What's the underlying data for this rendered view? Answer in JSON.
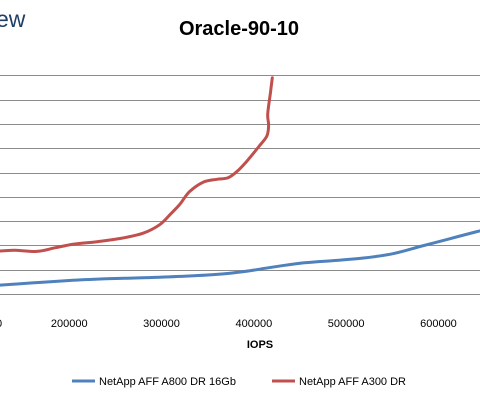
{
  "brand_text": "ew",
  "chart_data": {
    "type": "line",
    "title": "Oracle-90-10",
    "xlabel": "IOPS",
    "ylabel": "",
    "xlim": [
      125000,
      645000
    ],
    "ylim": [
      -0.5,
      9.8
    ],
    "x_ticks": [
      200000,
      300000,
      400000,
      500000,
      600000
    ],
    "x_tick_labels": [
      "200000",
      "300000",
      "400000",
      "500000",
      "600000"
    ],
    "y_gridlines": [
      0,
      1,
      2,
      3,
      4,
      5,
      6,
      7,
      8,
      9
    ],
    "grid": true,
    "legend_position": "bottom",
    "series": [
      {
        "name": "NetApp AFF A800 DR 16Gb",
        "color": "#4f81bd",
        "points": [
          [
            120000,
            0.35
          ],
          [
            160000,
            0.45
          ],
          [
            200000,
            0.55
          ],
          [
            240000,
            0.62
          ],
          [
            280000,
            0.66
          ],
          [
            320000,
            0.72
          ],
          [
            360000,
            0.8
          ],
          [
            390000,
            0.92
          ],
          [
            420000,
            1.1
          ],
          [
            455000,
            1.28
          ],
          [
            490000,
            1.38
          ],
          [
            520000,
            1.48
          ],
          [
            550000,
            1.65
          ],
          [
            580000,
            1.95
          ],
          [
            610000,
            2.25
          ],
          [
            640000,
            2.55
          ],
          [
            648000,
            2.62
          ]
        ]
      },
      {
        "name": "NetApp AFF A300 DR",
        "color": "#c0504d",
        "points": [
          [
            120000,
            1.75
          ],
          [
            140000,
            1.8
          ],
          [
            165000,
            1.75
          ],
          [
            185000,
            1.9
          ],
          [
            205000,
            2.05
          ],
          [
            230000,
            2.15
          ],
          [
            255000,
            2.28
          ],
          [
            280000,
            2.5
          ],
          [
            298000,
            2.85
          ],
          [
            310000,
            3.3
          ],
          [
            320000,
            3.7
          ],
          [
            330000,
            4.2
          ],
          [
            345000,
            4.6
          ],
          [
            360000,
            4.72
          ],
          [
            372000,
            4.78
          ],
          [
            382000,
            5.05
          ],
          [
            392000,
            5.45
          ],
          [
            405000,
            6.05
          ],
          [
            414000,
            6.5
          ],
          [
            416000,
            6.95
          ],
          [
            415000,
            7.4
          ],
          [
            418000,
            8.3
          ],
          [
            420000,
            8.9
          ]
        ]
      }
    ]
  }
}
